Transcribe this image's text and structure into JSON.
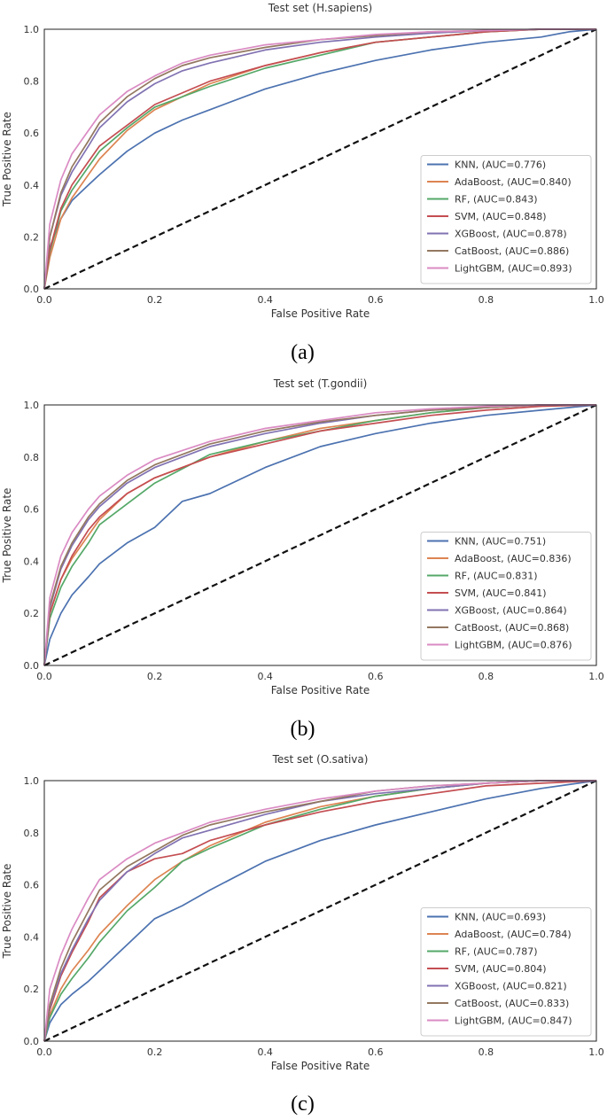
{
  "chart_data": [
    {
      "type": "line",
      "panel_label": "(a)",
      "title": "Test set (H.sapiens)",
      "xlabel": "False Positive Rate",
      "ylabel": "True Positive Rate",
      "xlim": [
        0,
        1
      ],
      "ylim": [
        0,
        1
      ],
      "xticks": [
        "0.0",
        "0.2",
        "0.4",
        "0.6",
        "0.8",
        "1.0"
      ],
      "yticks": [
        "0.0",
        "0.2",
        "0.4",
        "0.6",
        "0.8",
        "1.0"
      ],
      "grid": false,
      "legend_position": "lower-right",
      "diagonal_reference": true,
      "series": [
        {
          "name": "KNN, (AUC=0.776)",
          "color": "#4c72b0",
          "x": [
            0,
            0.01,
            0.03,
            0.05,
            0.08,
            0.1,
            0.15,
            0.2,
            0.25,
            0.3,
            0.4,
            0.5,
            0.6,
            0.7,
            0.8,
            0.9,
            0.95,
            1.0
          ],
          "y": [
            0,
            0.16,
            0.27,
            0.34,
            0.4,
            0.44,
            0.53,
            0.6,
            0.65,
            0.69,
            0.77,
            0.83,
            0.88,
            0.92,
            0.95,
            0.97,
            0.99,
            1.0
          ]
        },
        {
          "name": "AdaBoost, (AUC=0.840)",
          "color": "#dd8452",
          "x": [
            0,
            0.01,
            0.03,
            0.05,
            0.08,
            0.1,
            0.15,
            0.2,
            0.3,
            0.4,
            0.5,
            0.6,
            0.7,
            0.8,
            0.9,
            1.0
          ],
          "y": [
            0,
            0.12,
            0.27,
            0.35,
            0.44,
            0.5,
            0.61,
            0.69,
            0.79,
            0.86,
            0.91,
            0.95,
            0.97,
            0.99,
            1.0,
            1.0
          ]
        },
        {
          "name": "RF, (AUC=0.843)",
          "color": "#55a868",
          "x": [
            0,
            0.01,
            0.03,
            0.05,
            0.08,
            0.1,
            0.15,
            0.2,
            0.3,
            0.4,
            0.5,
            0.6,
            0.7,
            0.8,
            0.9,
            1.0
          ],
          "y": [
            0,
            0.14,
            0.3,
            0.38,
            0.47,
            0.53,
            0.62,
            0.7,
            0.78,
            0.85,
            0.9,
            0.95,
            0.97,
            0.99,
            1.0,
            1.0
          ]
        },
        {
          "name": "SVM, (AUC=0.848)",
          "color": "#c44e52",
          "x": [
            0,
            0.01,
            0.03,
            0.05,
            0.08,
            0.1,
            0.15,
            0.2,
            0.3,
            0.4,
            0.5,
            0.6,
            0.7,
            0.8,
            0.9,
            1.0
          ],
          "y": [
            0,
            0.15,
            0.31,
            0.4,
            0.49,
            0.55,
            0.63,
            0.71,
            0.8,
            0.86,
            0.91,
            0.95,
            0.97,
            0.99,
            1.0,
            1.0
          ]
        },
        {
          "name": "XGBoost, (AUC=0.878)",
          "color": "#8172b2",
          "x": [
            0,
            0.01,
            0.03,
            0.05,
            0.08,
            0.1,
            0.15,
            0.2,
            0.25,
            0.3,
            0.4,
            0.5,
            0.6,
            0.7,
            0.8,
            0.9,
            1.0
          ],
          "y": [
            0,
            0.2,
            0.36,
            0.45,
            0.55,
            0.62,
            0.72,
            0.79,
            0.84,
            0.87,
            0.92,
            0.95,
            0.97,
            0.985,
            0.995,
            1.0,
            1.0
          ]
        },
        {
          "name": "CatBoost, (AUC=0.886)",
          "color": "#937860",
          "x": [
            0,
            0.01,
            0.03,
            0.05,
            0.08,
            0.1,
            0.15,
            0.2,
            0.25,
            0.3,
            0.4,
            0.5,
            0.6,
            0.7,
            0.8,
            0.9,
            1.0
          ],
          "y": [
            0,
            0.2,
            0.37,
            0.47,
            0.57,
            0.64,
            0.74,
            0.81,
            0.86,
            0.89,
            0.93,
            0.96,
            0.975,
            0.99,
            0.995,
            1.0,
            1.0
          ]
        },
        {
          "name": "LightGBM, (AUC=0.893)",
          "color": "#da8bc3",
          "x": [
            0,
            0.01,
            0.03,
            0.05,
            0.08,
            0.1,
            0.15,
            0.2,
            0.25,
            0.3,
            0.4,
            0.5,
            0.6,
            0.7,
            0.8,
            0.9,
            1.0
          ],
          "y": [
            0,
            0.25,
            0.42,
            0.52,
            0.61,
            0.67,
            0.76,
            0.82,
            0.87,
            0.9,
            0.94,
            0.96,
            0.98,
            0.99,
            0.995,
            1.0,
            1.0
          ]
        }
      ]
    },
    {
      "type": "line",
      "panel_label": "(b)",
      "title": "Test set (T.gondii)",
      "xlabel": "False Positive Rate",
      "ylabel": "True Positive Rate",
      "xlim": [
        0,
        1
      ],
      "ylim": [
        0,
        1
      ],
      "xticks": [
        "0.0",
        "0.2",
        "0.4",
        "0.6",
        "0.8",
        "1.0"
      ],
      "yticks": [
        "0.0",
        "0.2",
        "0.4",
        "0.6",
        "0.8",
        "1.0"
      ],
      "grid": false,
      "legend_position": "lower-right",
      "diagonal_reference": true,
      "series": [
        {
          "name": "KNN, (AUC=0.751)",
          "color": "#4c72b0",
          "x": [
            0,
            0.01,
            0.03,
            0.05,
            0.08,
            0.1,
            0.15,
            0.2,
            0.25,
            0.3,
            0.4,
            0.5,
            0.6,
            0.7,
            0.8,
            0.9,
            1.0
          ],
          "y": [
            0,
            0.1,
            0.2,
            0.27,
            0.34,
            0.39,
            0.47,
            0.53,
            0.63,
            0.66,
            0.76,
            0.84,
            0.89,
            0.93,
            0.96,
            0.98,
            1.0
          ]
        },
        {
          "name": "AdaBoost, (AUC=0.836)",
          "color": "#dd8452",
          "x": [
            0,
            0.01,
            0.03,
            0.05,
            0.08,
            0.1,
            0.15,
            0.2,
            0.3,
            0.4,
            0.5,
            0.6,
            0.7,
            0.8,
            0.9,
            1.0
          ],
          "y": [
            0,
            0.2,
            0.33,
            0.41,
            0.5,
            0.56,
            0.66,
            0.72,
            0.8,
            0.86,
            0.91,
            0.94,
            0.97,
            0.99,
            1.0,
            1.0
          ]
        },
        {
          "name": "RF, (AUC=0.831)",
          "color": "#55a868",
          "x": [
            0,
            0.01,
            0.03,
            0.05,
            0.08,
            0.1,
            0.15,
            0.2,
            0.3,
            0.4,
            0.5,
            0.6,
            0.7,
            0.8,
            0.9,
            1.0
          ],
          "y": [
            0,
            0.18,
            0.3,
            0.38,
            0.47,
            0.54,
            0.62,
            0.7,
            0.81,
            0.86,
            0.9,
            0.94,
            0.97,
            0.99,
            1.0,
            1.0
          ]
        },
        {
          "name": "SVM, (AUC=0.841)",
          "color": "#c44e52",
          "x": [
            0,
            0.01,
            0.03,
            0.05,
            0.08,
            0.1,
            0.15,
            0.2,
            0.3,
            0.4,
            0.5,
            0.6,
            0.7,
            0.8,
            0.9,
            1.0
          ],
          "y": [
            0,
            0.2,
            0.33,
            0.42,
            0.52,
            0.57,
            0.66,
            0.72,
            0.8,
            0.85,
            0.9,
            0.93,
            0.96,
            0.98,
            0.995,
            1.0
          ]
        },
        {
          "name": "XGBoost, (AUC=0.864)",
          "color": "#8172b2",
          "x": [
            0,
            0.01,
            0.03,
            0.05,
            0.08,
            0.1,
            0.15,
            0.2,
            0.3,
            0.4,
            0.5,
            0.6,
            0.7,
            0.8,
            0.9,
            1.0
          ],
          "y": [
            0,
            0.22,
            0.37,
            0.46,
            0.56,
            0.61,
            0.7,
            0.76,
            0.84,
            0.89,
            0.93,
            0.96,
            0.98,
            0.99,
            1.0,
            1.0
          ]
        },
        {
          "name": "CatBoost, (AUC=0.868)",
          "color": "#937860",
          "x": [
            0,
            0.01,
            0.03,
            0.05,
            0.08,
            0.1,
            0.15,
            0.2,
            0.3,
            0.4,
            0.5,
            0.6,
            0.7,
            0.8,
            0.9,
            1.0
          ],
          "y": [
            0,
            0.23,
            0.38,
            0.47,
            0.57,
            0.62,
            0.71,
            0.77,
            0.85,
            0.9,
            0.935,
            0.96,
            0.98,
            0.99,
            1.0,
            1.0
          ]
        },
        {
          "name": "LightGBM, (AUC=0.876)",
          "color": "#da8bc3",
          "x": [
            0,
            0.01,
            0.03,
            0.05,
            0.08,
            0.1,
            0.15,
            0.2,
            0.3,
            0.4,
            0.5,
            0.6,
            0.7,
            0.8,
            0.9,
            1.0
          ],
          "y": [
            0,
            0.26,
            0.42,
            0.51,
            0.6,
            0.65,
            0.73,
            0.79,
            0.86,
            0.91,
            0.94,
            0.97,
            0.985,
            0.995,
            1.0,
            1.0
          ]
        }
      ]
    },
    {
      "type": "line",
      "panel_label": "(c)",
      "title": "Test set (O.sativa)",
      "xlabel": "False Positive Rate",
      "ylabel": "True Positive Rate",
      "xlim": [
        0,
        1
      ],
      "ylim": [
        0,
        1
      ],
      "xticks": [
        "0.0",
        "0.2",
        "0.4",
        "0.6",
        "0.8",
        "1.0"
      ],
      "yticks": [
        "0.0",
        "0.2",
        "0.4",
        "0.6",
        "0.8",
        "1.0"
      ],
      "grid": false,
      "legend_position": "lower-right",
      "diagonal_reference": true,
      "series": [
        {
          "name": "KNN, (AUC=0.693)",
          "color": "#4c72b0",
          "x": [
            0,
            0.01,
            0.03,
            0.05,
            0.08,
            0.1,
            0.15,
            0.2,
            0.25,
            0.3,
            0.4,
            0.5,
            0.6,
            0.7,
            0.8,
            0.9,
            1.0
          ],
          "y": [
            0,
            0.07,
            0.14,
            0.18,
            0.23,
            0.27,
            0.37,
            0.47,
            0.52,
            0.58,
            0.69,
            0.77,
            0.83,
            0.88,
            0.93,
            0.97,
            1.0
          ]
        },
        {
          "name": "AdaBoost, (AUC=0.784)",
          "color": "#dd8452",
          "x": [
            0,
            0.01,
            0.03,
            0.05,
            0.08,
            0.1,
            0.15,
            0.2,
            0.25,
            0.3,
            0.4,
            0.5,
            0.6,
            0.7,
            0.8,
            0.9,
            1.0
          ],
          "y": [
            0,
            0.1,
            0.2,
            0.27,
            0.35,
            0.41,
            0.52,
            0.62,
            0.69,
            0.75,
            0.84,
            0.9,
            0.94,
            0.97,
            0.99,
            1.0,
            1.0
          ]
        },
        {
          "name": "RF, (AUC=0.787)",
          "color": "#55a868",
          "x": [
            0,
            0.01,
            0.03,
            0.05,
            0.08,
            0.1,
            0.15,
            0.2,
            0.25,
            0.3,
            0.4,
            0.5,
            0.6,
            0.7,
            0.8,
            0.9,
            1.0
          ],
          "y": [
            0,
            0.09,
            0.18,
            0.24,
            0.32,
            0.38,
            0.5,
            0.59,
            0.69,
            0.74,
            0.83,
            0.89,
            0.94,
            0.97,
            0.99,
            1.0,
            1.0
          ]
        },
        {
          "name": "SVM, (AUC=0.804)",
          "color": "#c44e52",
          "x": [
            0,
            0.01,
            0.03,
            0.05,
            0.08,
            0.1,
            0.15,
            0.2,
            0.25,
            0.3,
            0.4,
            0.5,
            0.6,
            0.7,
            0.8,
            0.9,
            1.0
          ],
          "y": [
            0,
            0.12,
            0.25,
            0.34,
            0.46,
            0.55,
            0.65,
            0.7,
            0.72,
            0.77,
            0.83,
            0.88,
            0.92,
            0.95,
            0.98,
            0.99,
            1.0
          ]
        },
        {
          "name": "XGBoost, (AUC=0.821)",
          "color": "#8172b2",
          "x": [
            0,
            0.01,
            0.03,
            0.05,
            0.08,
            0.1,
            0.15,
            0.2,
            0.25,
            0.3,
            0.4,
            0.5,
            0.6,
            0.7,
            0.8,
            0.9,
            1.0
          ],
          "y": [
            0,
            0.13,
            0.26,
            0.35,
            0.47,
            0.54,
            0.65,
            0.72,
            0.78,
            0.81,
            0.87,
            0.92,
            0.95,
            0.97,
            0.99,
            1.0,
            1.0
          ]
        },
        {
          "name": "CatBoost, (AUC=0.833)",
          "color": "#937860",
          "x": [
            0,
            0.01,
            0.03,
            0.05,
            0.08,
            0.1,
            0.15,
            0.2,
            0.25,
            0.3,
            0.4,
            0.5,
            0.6,
            0.7,
            0.8,
            0.9,
            1.0
          ],
          "y": [
            0,
            0.14,
            0.28,
            0.38,
            0.5,
            0.58,
            0.67,
            0.73,
            0.79,
            0.83,
            0.88,
            0.92,
            0.96,
            0.98,
            0.99,
            1.0,
            1.0
          ]
        },
        {
          "name": "LightGBM, (AUC=0.847)",
          "color": "#da8bc3",
          "x": [
            0,
            0.01,
            0.03,
            0.05,
            0.08,
            0.1,
            0.15,
            0.2,
            0.25,
            0.3,
            0.4,
            0.5,
            0.6,
            0.7,
            0.8,
            0.9,
            1.0
          ],
          "y": [
            0,
            0.2,
            0.33,
            0.43,
            0.55,
            0.62,
            0.7,
            0.76,
            0.8,
            0.84,
            0.89,
            0.93,
            0.96,
            0.98,
            0.99,
            1.0,
            1.0
          ]
        }
      ]
    }
  ]
}
